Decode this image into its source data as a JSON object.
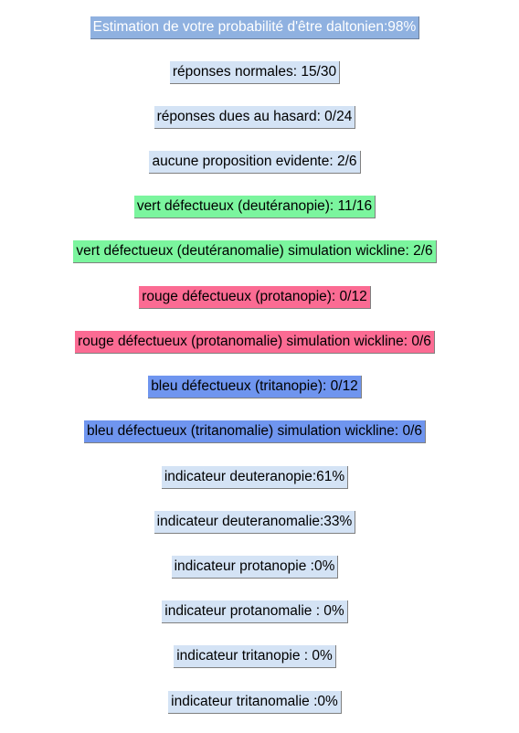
{
  "results": {
    "title": "Estimation de votre probabilité d'être daltonien:98%",
    "normal_answers": "réponses normales: 15/30",
    "random_answers": "réponses dues au hasard: 0/24",
    "no_obvious_answer": "aucune proposition evidente: 2/6",
    "deuteranopia": "vert défectueux (deutéranopie): 11/16",
    "deuteranomaly_wickline": "vert défectueux (deutéranomalie) simulation wickline: 2/6",
    "protanopia": "rouge défectueux (protanopie): 0/12",
    "protanomaly_wickline": "rouge défectueux (protanomalie) simulation wickline: 0/6",
    "tritanopia": "bleu défectueux (tritanopie): 0/12",
    "tritanomaly_wickline": "bleu défectueux (tritanomalie) simulation wickline: 0/6",
    "indicator_deuteranopia": "indicateur deuteranopie:61%",
    "indicator_deuteranomaly": "indicateur deuteranomalie:33%",
    "indicator_protanopia": "indicateur protanopie :0%",
    "indicator_protanomaly": "indicateur protanomalie : 0%",
    "indicator_tritanopia": "indicateur tritanopie : 0%",
    "indicator_tritanomaly": "indicateur tritanomalie :0%"
  },
  "colors": {
    "light": "#d4e3f5",
    "title": "#8fb1e0",
    "green": "#7bf59e",
    "red": "#fb6b93",
    "blue": "#6f95ef"
  }
}
